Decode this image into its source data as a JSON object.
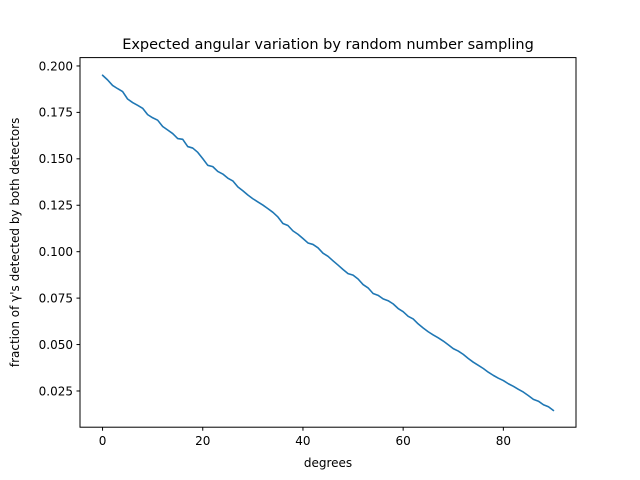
{
  "chart_data": {
    "type": "line",
    "title": "Expected angular variation by random number sampling",
    "xlabel": "degrees",
    "ylabel": "fraction of γ's detected by both detectors",
    "xlim": [
      -4.5,
      94.5
    ],
    "ylim": [
      0.0055,
      0.2045
    ],
    "grid": false,
    "legend": "none",
    "xticks": [
      0,
      20,
      40,
      60,
      80
    ],
    "xtick_labels": [
      "0",
      "20",
      "40",
      "60",
      "80"
    ],
    "yticks": [
      0.025,
      0.05,
      0.075,
      0.1,
      0.125,
      0.15,
      0.175,
      0.2
    ],
    "ytick_labels": [
      "0.025",
      "0.050",
      "0.075",
      "0.100",
      "0.125",
      "0.150",
      "0.175",
      "0.200"
    ],
    "series": [
      {
        "color": "#1f77b4",
        "x": [
          0,
          1,
          2,
          3,
          4,
          5,
          6,
          7,
          8,
          9,
          10,
          11,
          12,
          13,
          14,
          15,
          16,
          17,
          18,
          19,
          20,
          21,
          22,
          23,
          24,
          25,
          26,
          27,
          28,
          29,
          30,
          31,
          32,
          33,
          34,
          35,
          36,
          37,
          38,
          39,
          40,
          41,
          42,
          43,
          44,
          45,
          46,
          47,
          48,
          49,
          50,
          51,
          52,
          53,
          54,
          55,
          56,
          57,
          58,
          59,
          60,
          61,
          62,
          63,
          64,
          65,
          66,
          67,
          68,
          69,
          70,
          71,
          72,
          73,
          74,
          75,
          76,
          77,
          78,
          79,
          80,
          81,
          82,
          83,
          84,
          85,
          86,
          87,
          88,
          89,
          90
        ],
        "y": [
          0.195,
          0.1925,
          0.1895,
          0.1878,
          0.1862,
          0.1822,
          0.1803,
          0.1788,
          0.1772,
          0.1738,
          0.1721,
          0.1708,
          0.1674,
          0.1655,
          0.1636,
          0.1609,
          0.1605,
          0.1566,
          0.1558,
          0.1535,
          0.1501,
          0.1465,
          0.1458,
          0.1432,
          0.1418,
          0.1396,
          0.1381,
          0.1349,
          0.1328,
          0.1305,
          0.1285,
          0.1268,
          0.1251,
          0.1232,
          0.1212,
          0.1187,
          0.1152,
          0.1141,
          0.1112,
          0.1094,
          0.1071,
          0.1047,
          0.1039,
          0.1021,
          0.0992,
          0.0975,
          0.0951,
          0.0928,
          0.0904,
          0.0882,
          0.0874,
          0.0853,
          0.0823,
          0.0805,
          0.0775,
          0.0765,
          0.0746,
          0.0736,
          0.0719,
          0.0694,
          0.0677,
          0.0652,
          0.0638,
          0.0611,
          0.0589,
          0.0569,
          0.0552,
          0.0536,
          0.0519,
          0.0499,
          0.0478,
          0.0465,
          0.0447,
          0.0425,
          0.0405,
          0.0388,
          0.0371,
          0.0351,
          0.0334,
          0.0319,
          0.0306,
          0.0289,
          0.0275,
          0.0259,
          0.0244,
          0.0225,
          0.0205,
          0.0195,
          0.0176,
          0.0165,
          0.0145
        ]
      }
    ]
  }
}
